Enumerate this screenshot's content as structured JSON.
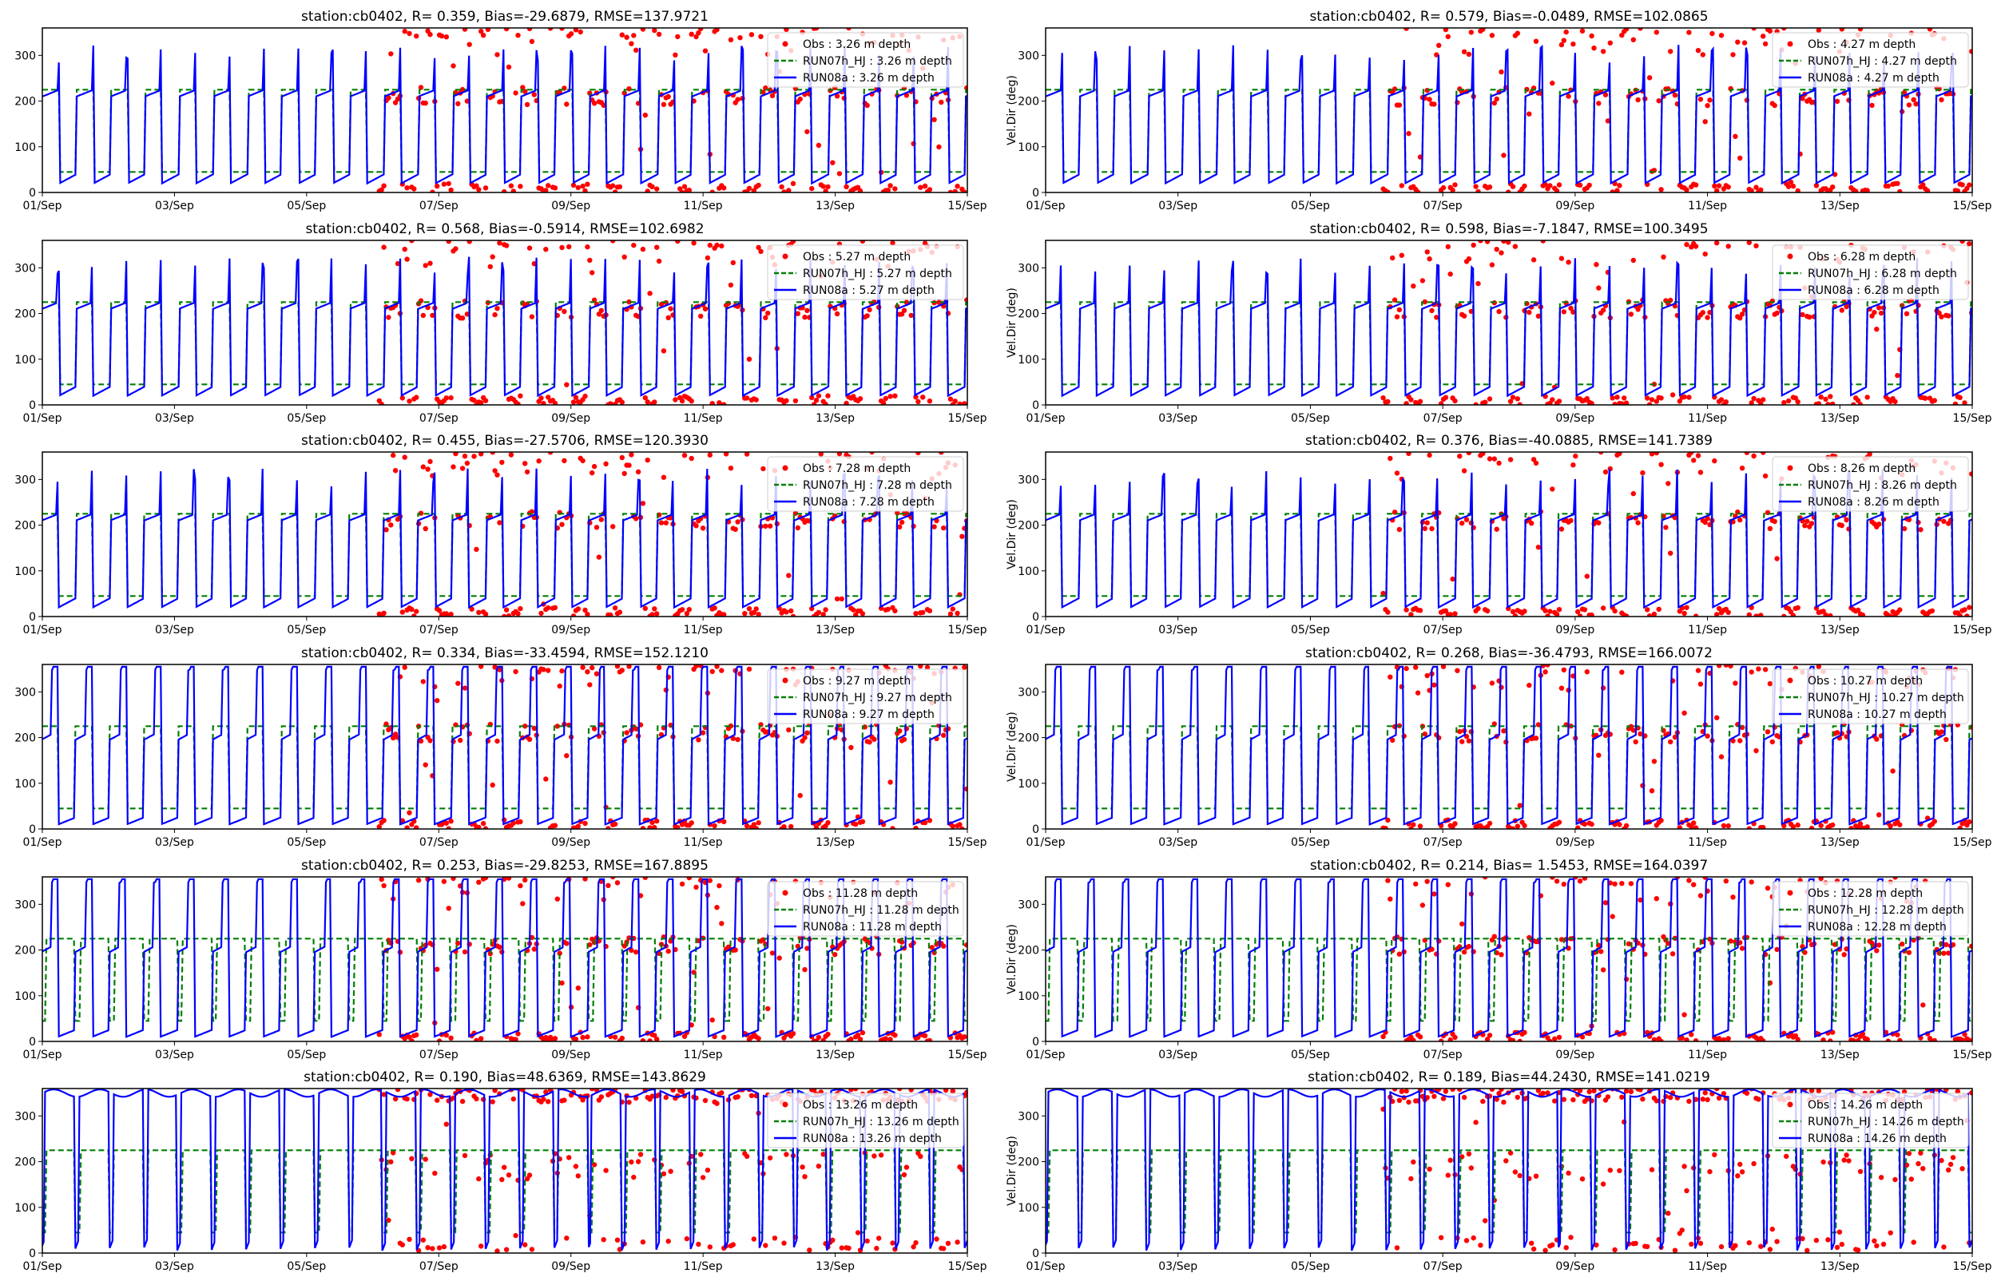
{
  "chart_data": {
    "type": "line",
    "layout": "6 rows x 2 columns",
    "station": "cb0402",
    "ylabel": "Vel.Dir (deg)",
    "ylim": [
      0,
      360
    ],
    "yticks": [
      "0",
      "100",
      "200",
      "300"
    ],
    "xlim": [
      "2000-09-01",
      "2000-09-15"
    ],
    "xticks": [
      "01/Sep",
      "03/Sep",
      "05/Sep",
      "07/Sep",
      "09/Sep",
      "11/Sep",
      "13/Sep",
      "15/Sep"
    ],
    "legend_placement": "upper right",
    "grid": false,
    "colors": {
      "obs": "#ff0000",
      "run07": "#008000",
      "run08": "#0000ff"
    },
    "series_styles": {
      "obs": "red dots",
      "run07": "green dashed line",
      "run08": "blue solid line"
    },
    "panels": [
      {
        "title": "station:cb0402, R= 0.359, Bias=-29.6879, RMSE=137.9721",
        "depth": "3.26",
        "legend": [
          "Obs : 3.26 m depth",
          "RUN07h_HJ : 3.26 m depth",
          "RUN08a : 3.26 m depth"
        ],
        "ylabel_shown": false
      },
      {
        "title": "station:cb0402, R= 0.579, Bias=-0.0489, RMSE=102.0865",
        "depth": "4.27",
        "legend": [
          "Obs : 4.27 m depth",
          "RUN07h_HJ : 4.27 m depth",
          "RUN08a : 4.27 m depth"
        ],
        "ylabel_shown": true
      },
      {
        "title": "station:cb0402, R= 0.568, Bias=-0.5914, RMSE=102.6982",
        "depth": "5.27",
        "legend": [
          "Obs : 5.27 m depth",
          "RUN07h_HJ : 5.27 m depth",
          "RUN08a : 5.27 m depth"
        ],
        "ylabel_shown": false
      },
      {
        "title": "station:cb0402, R= 0.598, Bias=-7.1847, RMSE=100.3495",
        "depth": "6.28",
        "legend": [
          "Obs : 6.28 m depth",
          "RUN07h_HJ : 6.28 m depth",
          "RUN08a : 6.28 m depth"
        ],
        "ylabel_shown": true
      },
      {
        "title": "station:cb0402, R= 0.455, Bias=-27.5706, RMSE=120.3930",
        "depth": "7.28",
        "legend": [
          "Obs : 7.28 m depth",
          "RUN07h_HJ : 7.28 m depth",
          "RUN08a : 7.28 m depth"
        ],
        "ylabel_shown": false
      },
      {
        "title": "station:cb0402, R= 0.376, Bias=-40.0885, RMSE=141.7389",
        "depth": "8.26",
        "legend": [
          "Obs : 8.26 m depth",
          "RUN07h_HJ : 8.26 m depth",
          "RUN08a : 8.26 m depth"
        ],
        "ylabel_shown": true
      },
      {
        "title": "station:cb0402, R= 0.334, Bias=-33.4594, RMSE=152.1210",
        "depth": "9.27",
        "legend": [
          "Obs : 9.27 m depth",
          "RUN07h_HJ : 9.27 m depth",
          "RUN08a : 9.27 m depth"
        ],
        "ylabel_shown": false
      },
      {
        "title": "station:cb0402, R= 0.268, Bias=-36.4793, RMSE=166.0072",
        "depth": "10.27",
        "legend": [
          "Obs : 10.27 m depth",
          "RUN07h_HJ : 10.27 m depth",
          "RUN08a : 10.27 m depth"
        ],
        "ylabel_shown": true
      },
      {
        "title": "station:cb0402, R= 0.253, Bias=-29.8253, RMSE=167.8895",
        "depth": "11.28",
        "legend": [
          "Obs : 11.28 m depth",
          "RUN07h_HJ : 11.28 m depth",
          "RUN08a : 11.28 m depth"
        ],
        "ylabel_shown": false
      },
      {
        "title": "station:cb0402, R= 0.214, Bias= 1.5453, RMSE=164.0397",
        "depth": "12.28",
        "legend": [
          "Obs : 12.28 m depth",
          "RUN07h_HJ : 12.28 m depth",
          "RUN08a : 12.28 m depth"
        ],
        "ylabel_shown": true
      },
      {
        "title": "station:cb0402, R= 0.190, Bias=48.6369, RMSE=143.8629",
        "depth": "13.26",
        "legend": [
          "Obs : 13.26 m depth",
          "RUN07h_HJ : 13.26 m depth",
          "RUN08a : 13.26 m depth"
        ],
        "ylabel_shown": false
      },
      {
        "title": "station:cb0402, R= 0.189, Bias=44.2430, RMSE=141.0219",
        "depth": "14.26",
        "legend": [
          "Obs : 14.26 m depth",
          "RUN07h_HJ : 14.26 m depth",
          "RUN08a : 14.26 m depth"
        ],
        "ylabel_shown": true
      }
    ],
    "run07_levels_deg": [
      45,
      225
    ],
    "obs_start": "06/Sep"
  }
}
